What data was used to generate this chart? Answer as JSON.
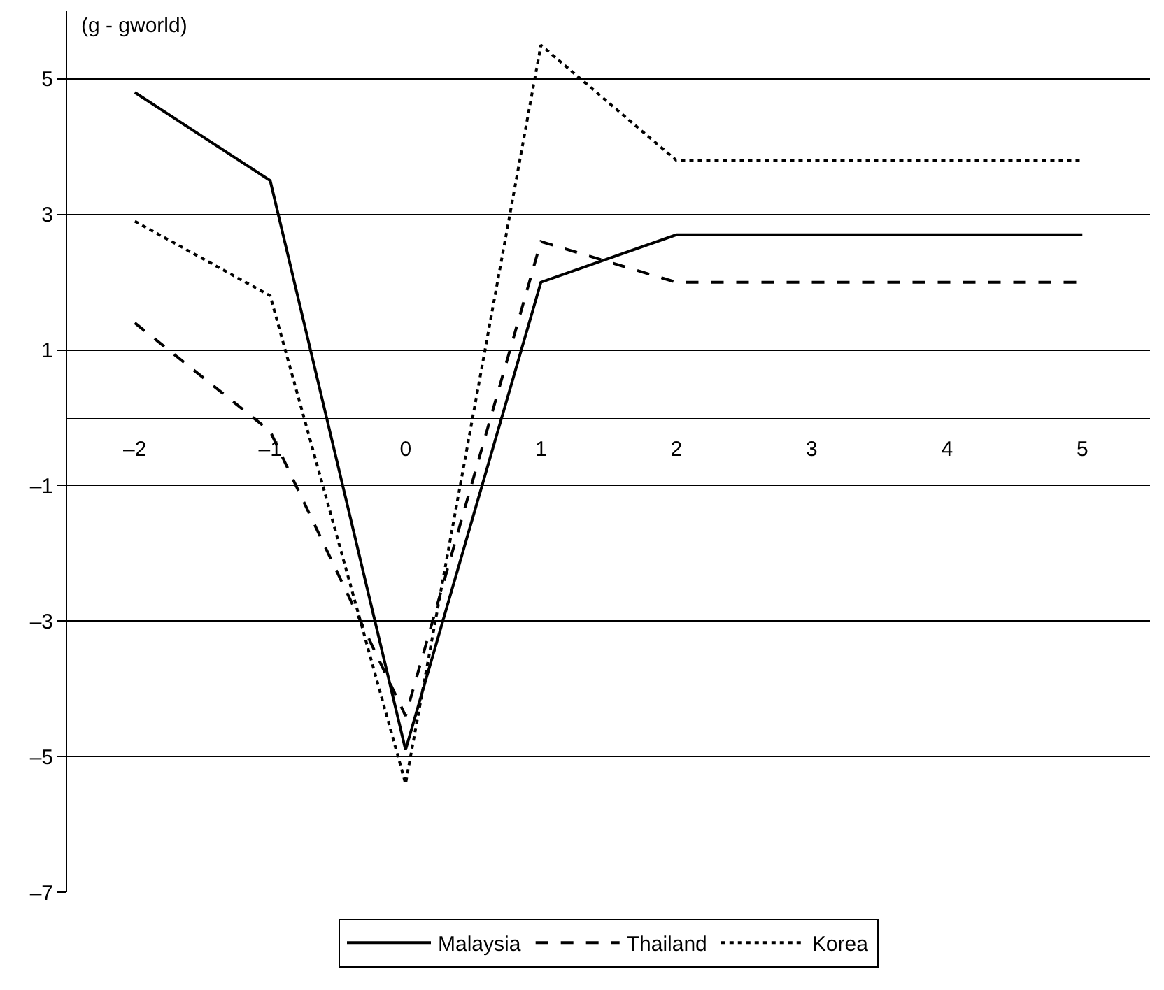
{
  "chart_data": {
    "type": "line",
    "ylabel": "(g - gworld)",
    "x": [
      -2,
      -1,
      0,
      1,
      2,
      3,
      4,
      5
    ],
    "xlim": [
      -2.5,
      5.5
    ],
    "xticks": [
      {
        "value": -2,
        "label": "–2"
      },
      {
        "value": -1,
        "label": "–1"
      },
      0,
      1,
      2,
      3,
      4,
      5
    ],
    "ylim": [
      -7,
      6
    ],
    "yticks": [
      {
        "value": -7,
        "label": "–7"
      },
      {
        "value": -5,
        "label": "–5"
      },
      {
        "value": -3,
        "label": "–3"
      },
      {
        "value": -1,
        "label": "–1"
      },
      1,
      3,
      5
    ],
    "grid": "y",
    "legend": "bottom",
    "marker": "none",
    "series": [
      {
        "name": "Malaysia",
        "color": "#000000",
        "line_style": "solid",
        "values": [
          4.8,
          3.5,
          -4.9,
          2.0,
          2.7,
          2.7,
          2.7,
          2.7
        ]
      },
      {
        "name": "Thailand",
        "color": "#000000",
        "line_style": "dashed",
        "values": [
          1.4,
          -0.2,
          -4.4,
          2.6,
          2.0,
          2.0,
          2.0,
          2.0
        ]
      },
      {
        "name": "Korea",
        "color": "#000000",
        "line_style": "dotted",
        "values": [
          2.9,
          1.8,
          -5.4,
          5.5,
          3.8,
          3.8,
          3.8,
          3.8
        ]
      }
    ]
  }
}
